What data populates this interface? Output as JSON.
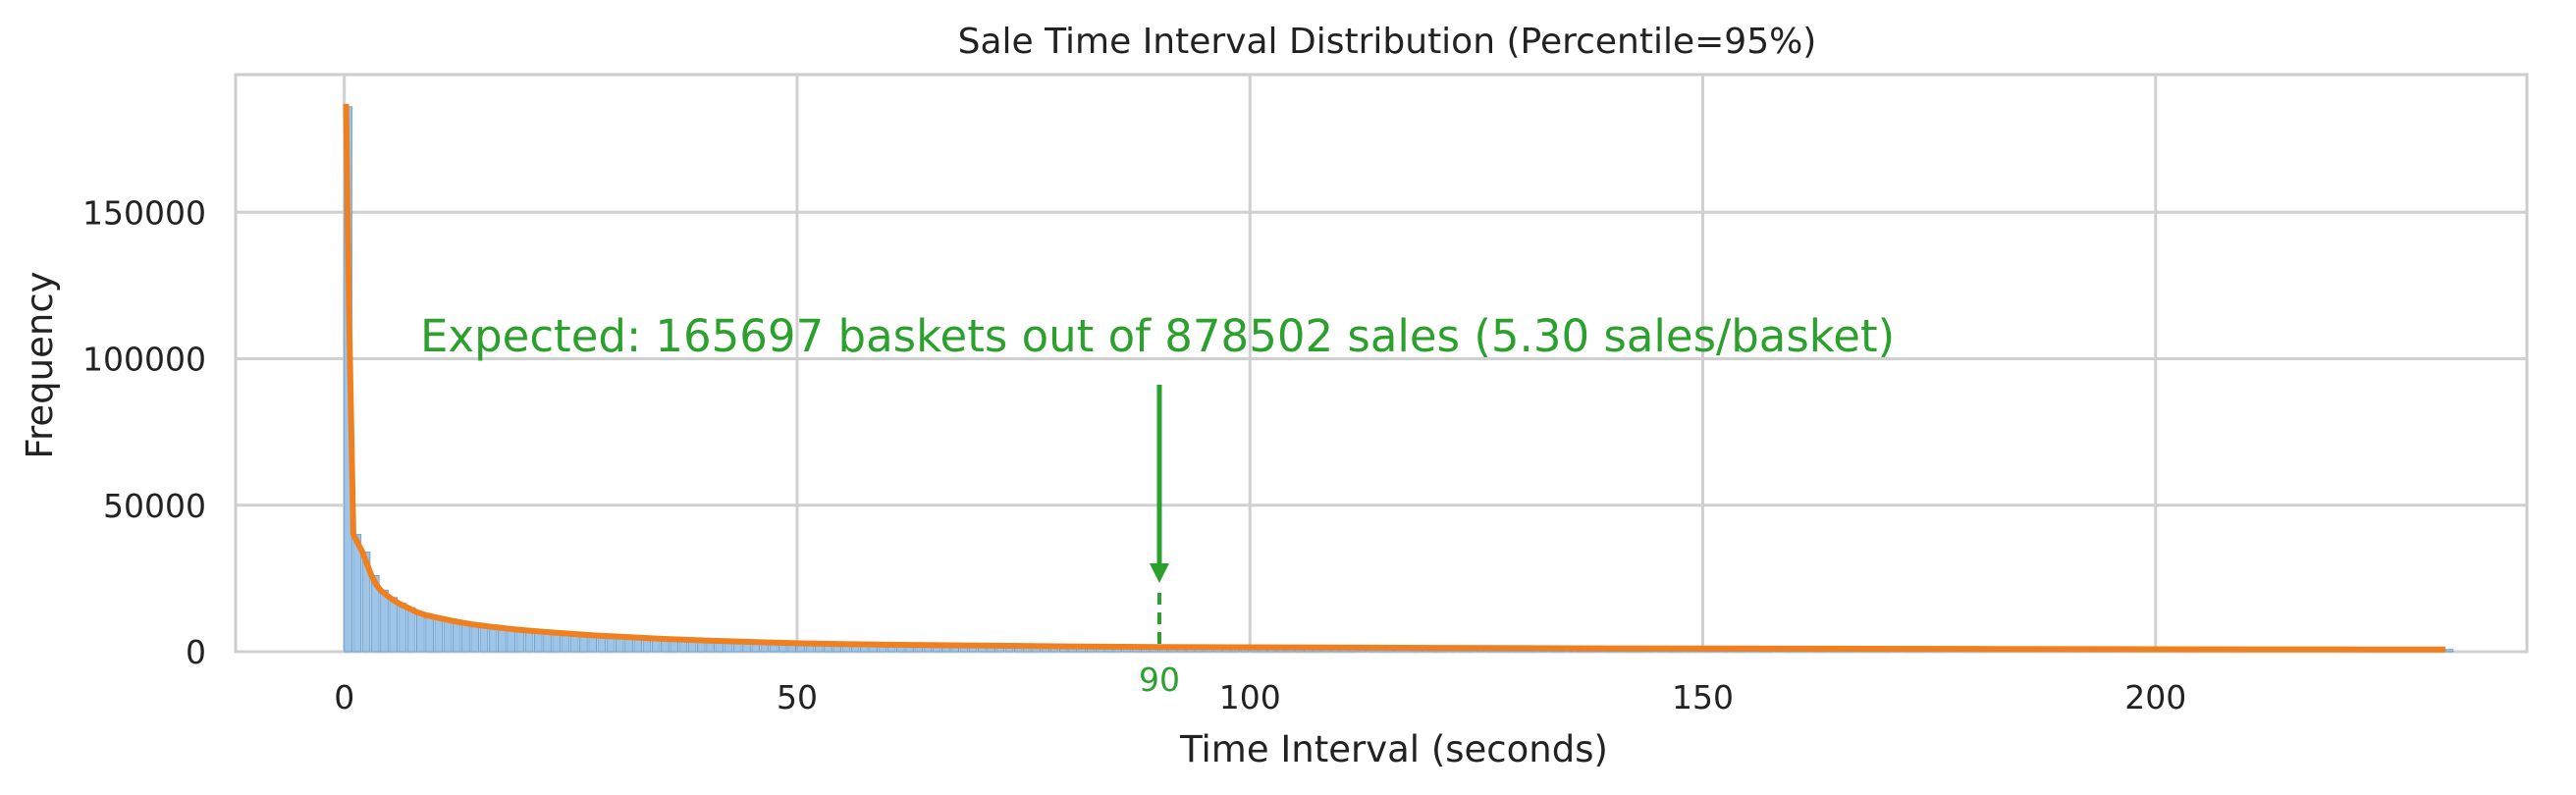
{
  "chart_data": {
    "type": "bar",
    "title": "Sale Time Interval Distribution (Percentile=95%)",
    "xlabel": "Time Interval (seconds)",
    "ylabel": "Frequency",
    "xlim": [
      -12,
      241
    ],
    "ylim": [
      0,
      197000
    ],
    "xticks": [
      0,
      50,
      100,
      150,
      200
    ],
    "yticks": [
      0,
      50000,
      100000,
      150000
    ],
    "grid": true,
    "series": [
      {
        "kind": "histogram",
        "color": "#9ec5e8",
        "x": [
          0,
          1,
          2,
          3,
          4,
          5,
          6,
          7,
          8,
          9,
          10,
          12,
          14,
          16,
          18,
          20,
          22,
          25,
          28,
          30,
          35,
          40,
          45,
          50,
          55,
          60,
          70,
          80,
          90,
          100,
          120,
          140,
          160,
          180,
          200,
          220,
          232
        ],
        "values": [
          186000,
          40000,
          34000,
          26000,
          21000,
          18500,
          16500,
          15000,
          13500,
          12500,
          11800,
          10500,
          9400,
          8600,
          7900,
          7300,
          6800,
          6100,
          5500,
          5200,
          4400,
          3800,
          3300,
          2900,
          2600,
          2400,
          2100,
          1800,
          1600,
          1500,
          1300,
          1150,
          1050,
          950,
          850,
          780,
          740
        ]
      },
      {
        "kind": "kde",
        "color": "#f07f1f",
        "x": [
          0.2,
          0.5,
          1,
          1.5,
          2,
          2.5,
          3,
          3.5,
          4,
          5,
          6,
          7,
          8,
          9,
          10,
          12,
          14,
          16,
          18,
          20,
          22,
          25,
          28,
          30,
          35,
          40,
          45,
          50,
          55,
          60,
          70,
          80,
          90,
          100,
          120,
          140,
          160,
          180,
          200,
          220,
          232
        ],
        "values": [
          187000,
          120000,
          40000,
          37000,
          34000,
          30000,
          26000,
          23000,
          21000,
          18500,
          16500,
          15000,
          13500,
          12500,
          11800,
          10500,
          9400,
          8600,
          7900,
          7300,
          6800,
          6100,
          5500,
          5200,
          4400,
          3800,
          3300,
          2900,
          2600,
          2400,
          2100,
          1800,
          1600,
          1500,
          1300,
          1150,
          1050,
          950,
          850,
          780,
          740
        ]
      }
    ],
    "annotation": {
      "text": "Expected: 165697 baskets out of 878502 sales (5.30 sales/basket)",
      "marker_x": 90,
      "marker_label": "90",
      "color": "#2ca02c"
    }
  }
}
